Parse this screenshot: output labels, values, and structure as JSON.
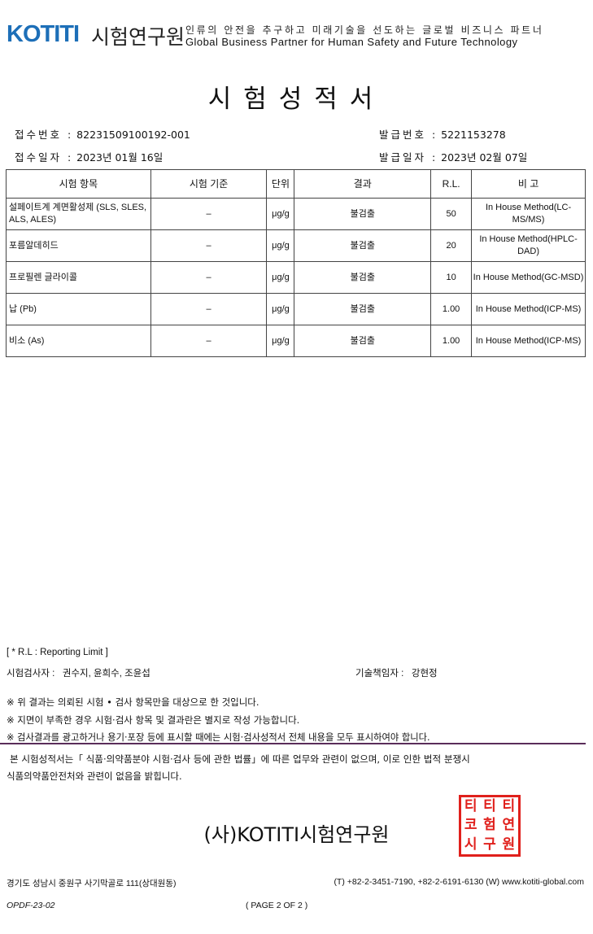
{
  "header": {
    "logo_latin": "KOTITI",
    "logo_korean": "시험연구원",
    "slogan_kr": "인류의 안전을 추구하고 미래기술을 선도하는 글로벌 비즈니스 파트너",
    "slogan_en": "Global Business Partner for Human Safety and Future Technology",
    "brand_color": "#1d6fb8"
  },
  "title": "시험성적서",
  "info": {
    "receipt_no_label": "접수번호 :",
    "receipt_no": "82231509100192-001",
    "issue_no_label": "발급번호 :",
    "issue_no": "5221153278",
    "receipt_date_label": "접수일자 :",
    "receipt_date": "2023년 01월 16일",
    "issue_date_label": "발급일자 :",
    "issue_date": "2023년 02월 07일"
  },
  "table": {
    "headers": [
      "시험 항목",
      "시험 기준",
      "단위",
      "결과",
      "R.L.",
      "비 고"
    ],
    "rows": [
      [
        "설페이트계 계면활성제 (SLS, SLES, ALS, ALES)",
        "–",
        "μg/g",
        "불검출",
        "50",
        "In House Method(LC-MS/MS)"
      ],
      [
        "포름알데히드",
        "–",
        "μg/g",
        "불검출",
        "20",
        "In House Method(HPLC-DAD)"
      ],
      [
        "프로필렌 글라이콜",
        "–",
        "μg/g",
        "불검출",
        "10",
        "In House Method(GC-MSD)"
      ],
      [
        "납 (Pb)",
        "–",
        "μg/g",
        "불검출",
        "1.00",
        "In House Method(ICP-MS)"
      ],
      [
        "비소 (As)",
        "–",
        "μg/g",
        "불검출",
        "1.00",
        "In House Method(ICP-MS)"
      ]
    ]
  },
  "footer": {
    "rl_note": "[ * R.L : Reporting Limit ]",
    "testers_label": "시험검사자 :",
    "testers": "권수지, 윤희수, 조윤섭",
    "manager_label": "기술책임자 :",
    "manager": "강현정",
    "notes": [
      "※ 위 결과는 의뢰된 시험 • 검사 항목만을 대상으로 한 것입니다.",
      "※ 지면이 부족한 경우 시험·검사 항목 및 결과란은 별지로 작성 가능합니다.",
      "※ 검사결과를 광고하거나 용기·포장 등에 표시할 때에는 시험·검사성적서 전체 내용을 모두 표시하여야 합니다."
    ],
    "disclaimer_1": "본 시험성적서는「 식품·의약품분야 시험·검사 등에 관한 법률」에 따른 업무와 관련이 없으며, 이로 인한 법적 분쟁시",
    "disclaimer_2": "식품의약품안전처와 관련이 없음을 밝힙니다.",
    "org_name": "(사)KOTITI시험연구원",
    "seal_text": "코티티시험연구원인",
    "seal_color": "#e0201c",
    "address": "경기도 성남시 중원구 사기막골로 111(상대원동)",
    "contact": "(T) +82-2-3451-7190, +82-2-6191-6130  (W) www.kotiti-global.com",
    "form_code": "OPDF-23-02",
    "page": "( PAGE 2 OF 2 )"
  }
}
